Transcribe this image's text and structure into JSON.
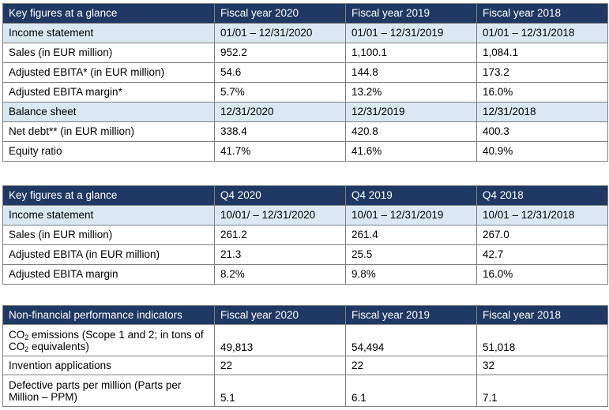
{
  "table1": {
    "header": [
      "Key figures at a glance",
      "Fiscal year 2020",
      "Fiscal year 2019",
      "Fiscal year 2018"
    ],
    "rows": [
      {
        "type": "section",
        "cells": [
          "Income statement",
          "01/01 – 12/31/2020",
          "01/01 – 12/31/2019",
          "01/01 – 12/31/2018"
        ]
      },
      {
        "type": "data",
        "cells": [
          "Sales (in EUR million)",
          "952.2",
          "1,100.1",
          "1,084.1"
        ]
      },
      {
        "type": "data",
        "cells": [
          "Adjusted EBITA* (in EUR million)",
          "54.6",
          "144.8",
          "173.2"
        ]
      },
      {
        "type": "data",
        "cells": [
          "Adjusted EBITA margin*",
          "5.7%",
          "13.2%",
          "16.0%"
        ]
      },
      {
        "type": "section",
        "cells": [
          "Balance sheet",
          "12/31/2020",
          "12/31/2019",
          "12/31/2018"
        ]
      },
      {
        "type": "data",
        "cells": [
          "Net debt** (in EUR million)",
          "338.4",
          "420.8",
          "400.3"
        ]
      },
      {
        "type": "data",
        "cells": [
          "Equity ratio",
          "41.7%",
          "41.6%",
          "40.9%"
        ]
      }
    ]
  },
  "table2": {
    "header": [
      "Key figures at a glance",
      "Q4 2020",
      "Q4 2019",
      "Q4 2018"
    ],
    "rows": [
      {
        "type": "section",
        "cells": [
          "Income statement",
          "10/01/ – 12/31/2020",
          "10/01 – 12/31/2019",
          "10/01 – 12/31/2018"
        ]
      },
      {
        "type": "data",
        "cells": [
          "Sales (in EUR million)",
          "261.2",
          "261.4",
          "267.0"
        ]
      },
      {
        "type": "data",
        "cells": [
          "Adjusted EBITA (in EUR million)",
          "21.3",
          "25.5",
          "42.7"
        ]
      },
      {
        "type": "data",
        "cells": [
          "Adjusted EBITA margin",
          "8.2%",
          "9.8%",
          "16.0%"
        ]
      }
    ]
  },
  "table3": {
    "header": [
      "Non-financial performance indicators",
      "Fiscal year 2020",
      "Fiscal year 2019",
      "Fiscal year 2018"
    ],
    "co2": {
      "prefix1": "CO",
      "sub": "2",
      "suffix1": " emissions (Scope 1 and 2; in tons of",
      "prefix2": "CO",
      "suffix2": " equivalents)",
      "values": [
        "49,813",
        "54,494",
        "51,018"
      ]
    },
    "inventions": {
      "cells": [
        "Invention applications",
        "22",
        "22",
        "32"
      ]
    },
    "defective": {
      "label": "Defective parts per million (Parts per Million – PPM)",
      "values": [
        "5.1",
        "6.1",
        "7.1"
      ]
    }
  }
}
